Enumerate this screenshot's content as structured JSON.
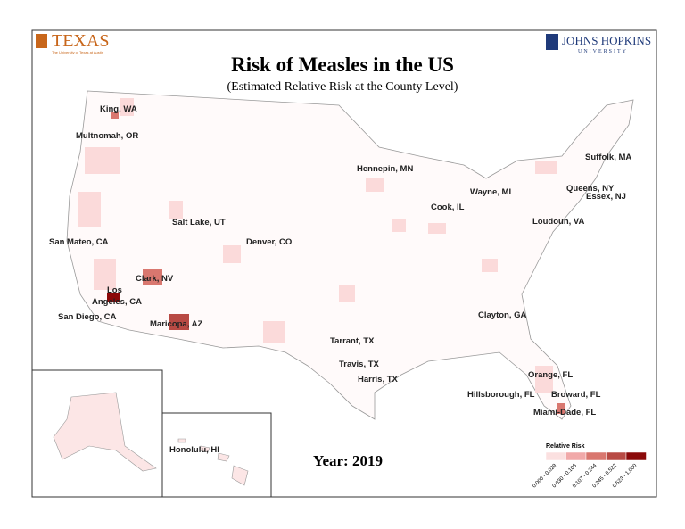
{
  "logos": {
    "left": "TEXAS",
    "left_sub": "The University of Texas at Austin",
    "right": "JOHNS HOPKINS",
    "right_sub": "UNIVERSITY"
  },
  "title": "Risk of  Measles in the US",
  "subtitle": "(Estimated Relative Risk at the County Level)",
  "year": "Year: 2019",
  "places": [
    "King, WA",
    "Multnomah, OR",
    "Salt Lake, UT",
    "San Mateo, CA",
    "Clark, NV",
    "Los",
    "Angeles, CA",
    "San Diego, CA",
    "Maricopa, AZ",
    "Denver, CO",
    "Hennepin, MN",
    "Cook, IL",
    "Wayne, MI",
    "Suffolk, MA",
    "Queens, NY",
    "Essex, NJ",
    "Loudoun, VA",
    "Clayton, GA",
    "Tarrant, TX",
    "Travis, TX",
    "Harris, TX",
    "Orange, FL",
    "Hillsborough, FL",
    "Broward, FL",
    "Miami-Dade, FL",
    "Honolulu, HI"
  ],
  "legend": {
    "title": "Relative Risk",
    "items": [
      {
        "label": "0.000 - 0.029",
        "color": "#fbe0e0"
      },
      {
        "label": "0.030 - 0.106",
        "color": "#f1a9a9"
      },
      {
        "label": "0.107 - 0.244",
        "color": "#d9776f"
      },
      {
        "label": "0.245 - 0.522",
        "color": "#b84a44"
      },
      {
        "label": "0.523 - 1.000",
        "color": "#8b0a0a"
      }
    ]
  }
}
